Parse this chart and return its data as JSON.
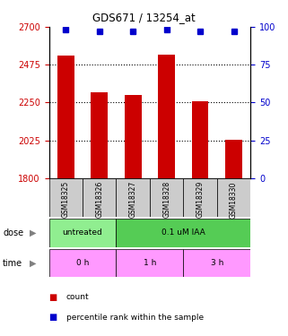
{
  "title": "GDS671 / 13254_at",
  "samples": [
    "GSM18325",
    "GSM18326",
    "GSM18327",
    "GSM18328",
    "GSM18329",
    "GSM18330"
  ],
  "bar_values": [
    2530,
    2310,
    2295,
    2535,
    2255,
    2030
  ],
  "dot_values": [
    98,
    97,
    97,
    98,
    97,
    97
  ],
  "ylim_left": [
    1800,
    2700
  ],
  "ylim_right": [
    0,
    100
  ],
  "yticks_left": [
    1800,
    2025,
    2250,
    2475,
    2700
  ],
  "yticks_right": [
    0,
    25,
    50,
    75,
    100
  ],
  "bar_color": "#cc0000",
  "dot_color": "#0000cc",
  "tick_color_left": "#cc0000",
  "tick_color_right": "#0000cc",
  "dose_untreated_color": "#90ee90",
  "dose_iaa_color": "#55cc55",
  "time_color": "#ff99ff",
  "sample_bg_color": "#cccccc",
  "legend_count_color": "#cc0000",
  "legend_dot_color": "#0000cc",
  "time_labels": [
    "0 h",
    "1 h",
    "3 h"
  ],
  "dose_labels": [
    "untreated",
    "0.1 uM IAA"
  ]
}
